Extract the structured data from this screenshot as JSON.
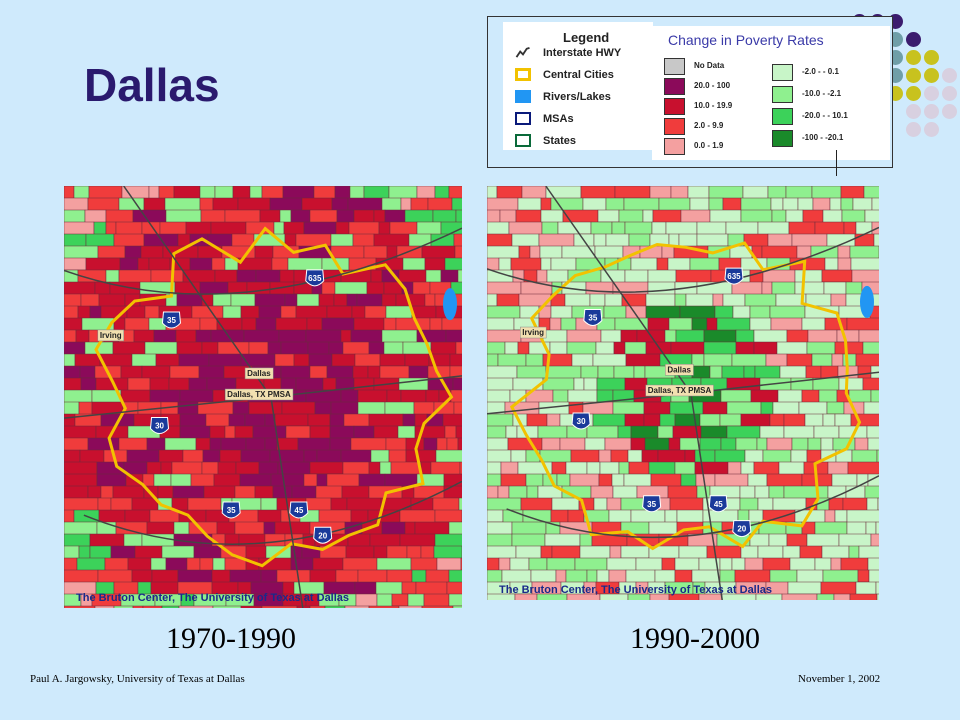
{
  "slide": {
    "title": "Dallas",
    "footer_left": "Paul A. Jargowsky, University of Texas at Dallas",
    "footer_right": "November 1, 2002"
  },
  "legend": {
    "heading": "Legend",
    "items": [
      {
        "label": "Interstate HWY",
        "symbol": "highway-line",
        "color": "#333333"
      },
      {
        "label": "Central Cities",
        "symbol": "outline-box",
        "color": "#f2c200"
      },
      {
        "label": "Rivers/Lakes",
        "symbol": "fill-box",
        "color": "#2196f3"
      },
      {
        "label": "MSAs",
        "symbol": "outline-box",
        "color": "#0a1a7a"
      },
      {
        "label": "States",
        "symbol": "outline-box",
        "color": "#0a6a3a"
      }
    ]
  },
  "poverty_legend": {
    "title": "Change in Poverty Rates",
    "increase": [
      {
        "label": "No Data",
        "color": "#c8c8c8"
      },
      {
        "label": "20.0 - 100",
        "color": "#8b0a5a"
      },
      {
        "label": "10.0 - 19.9",
        "color": "#c8102e"
      },
      {
        "label": "2.0 - 9.9",
        "color": "#f03c3c"
      },
      {
        "label": "0.0 - 1.9",
        "color": "#f4a0a0"
      }
    ],
    "decrease": [
      {
        "label": "-2.0 - - 0.1",
        "color": "#c8f5c8"
      },
      {
        "label": "-10.0 - -2.1",
        "color": "#8ff08f"
      },
      {
        "label": "-20.0 - - 10.1",
        "color": "#3cd25a"
      },
      {
        "label": "-100 - -20.1",
        "color": "#1a8a2a"
      }
    ]
  },
  "maps": [
    {
      "period": "1970-1990",
      "credit": "The Bruton Center, The University of Texas at Dallas",
      "labels": {
        "irving": "Irving",
        "dallas": "Dallas",
        "pmsa": "Dallas, TX PMSA"
      },
      "shields": [
        "635",
        "35",
        "30",
        "35",
        "45",
        "20"
      ]
    },
    {
      "period": "1990-2000",
      "credit": "The Bruton Center, The University of Texas at Dallas",
      "labels": {
        "irving": "Irving",
        "dallas": "Dallas",
        "pmsa": "Dallas, TX PMSA"
      },
      "shields": [
        "635",
        "35",
        "30",
        "35",
        "45",
        "20"
      ]
    }
  ],
  "decor_colors": [
    "#3b1c6e",
    "#6f9fa8",
    "#c8c21e",
    "#d8d0e0"
  ]
}
